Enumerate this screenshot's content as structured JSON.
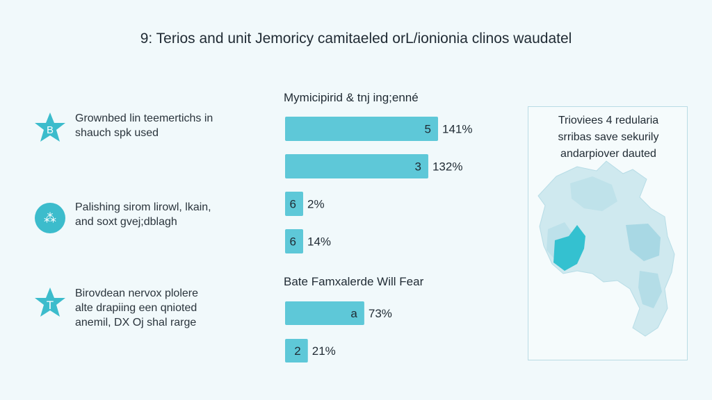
{
  "header": {
    "title": "9: Terios and unit Jemoricy camitaeled orL/ionionia clinos waudatel"
  },
  "left_items": [
    {
      "icon": "star-badge-icon",
      "glyph": "B",
      "text": "Grownbed lin teemertichs in\nshauch spk used"
    },
    {
      "icon": "circle-pattern-icon",
      "glyph": "⁂",
      "text": "Palishing sirom lirowl, lkain,\nand soxt gvej;dblagh"
    },
    {
      "icon": "star-badge-icon",
      "glyph": "T",
      "text": "Birovdean nervox plolere\nalte drapiing een qnioted\nanemil, DX Oj shal rarge"
    }
  ],
  "chart_data": [
    {
      "type": "bar",
      "title": "Mymicipirid & tnj ing;enné",
      "categories": [
        "5",
        "3",
        "6",
        "6"
      ],
      "values": [
        141,
        132,
        2,
        14
      ],
      "value_labels": [
        "141%",
        "132%",
        "2%",
        "14%"
      ]
    },
    {
      "type": "bar",
      "title": "Bate Famxalerde Will Fear",
      "categories": [
        "a",
        "2"
      ],
      "values": [
        73,
        21
      ],
      "value_labels": [
        "73%",
        "21%"
      ]
    }
  ],
  "map_panel": {
    "caption": "Trioviees 4 redularia\nsrribas save sekurily\nandarpiover dauted"
  },
  "colors": {
    "bar": "#5ec8d8",
    "accent": "#3cbccc",
    "map_light": "#cfe9ef",
    "map_mid": "#a8d8e4",
    "map_dark": "#34c1d0"
  }
}
